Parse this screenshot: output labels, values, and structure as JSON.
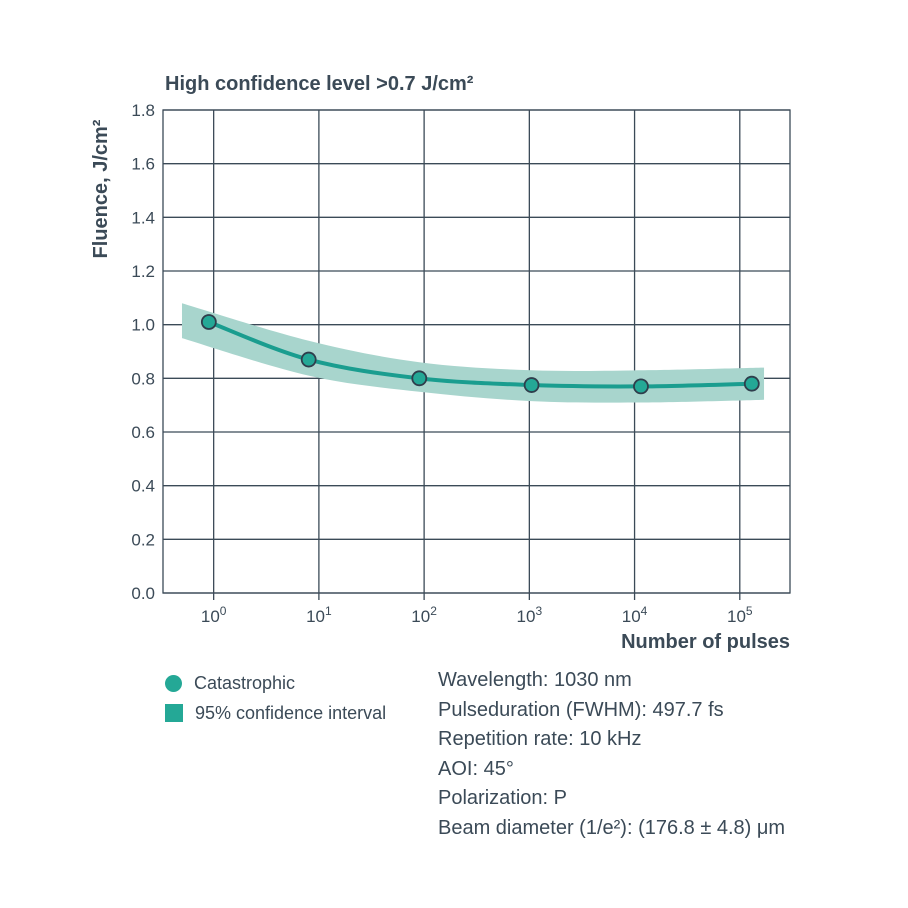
{
  "chart_data": {
    "type": "line",
    "title": "High confidence level >0.7 J/cm²",
    "xlabel": "Number of pulses",
    "ylabel": "Fluence, J/cm²",
    "x_scale": "log",
    "x_ticks": [
      1,
      10,
      100,
      1000,
      10000,
      100000
    ],
    "x_tick_labels": [
      {
        "base": "10",
        "exp": "0"
      },
      {
        "base": "10",
        "exp": "1"
      },
      {
        "base": "10",
        "exp": "2"
      },
      {
        "base": "10",
        "exp": "3"
      },
      {
        "base": "10",
        "exp": "4"
      },
      {
        "base": "10",
        "exp": "5"
      }
    ],
    "xlim": [
      0.33,
      300000
    ],
    "ylim": [
      0,
      1.8
    ],
    "y_ticks": [
      0.0,
      0.2,
      0.4,
      0.6,
      0.8,
      1.0,
      1.2,
      1.4,
      1.6,
      1.8
    ],
    "y_tick_labels": [
      "0.0",
      "0.2",
      "0.4",
      "0.6",
      "0.8",
      "1.0",
      "1.2",
      "1.4",
      "1.6",
      "1.8"
    ],
    "grid": true,
    "series": [
      {
        "name": "Catastrophic",
        "x": [
          0.9,
          8,
          90,
          1050,
          11500,
          130000
        ],
        "y": [
          1.01,
          0.87,
          0.8,
          0.775,
          0.77,
          0.78
        ]
      }
    ],
    "confidence_band": {
      "name": "95% confidence interval",
      "x": [
        0.5,
        8,
        90,
        1050,
        11500,
        170000
      ],
      "upper": [
        1.08,
        0.94,
        0.86,
        0.83,
        0.83,
        0.84
      ],
      "lower": [
        0.95,
        0.81,
        0.75,
        0.715,
        0.71,
        0.72
      ]
    },
    "colors": {
      "line": "#1a9d8f",
      "band": "#a8d5cd",
      "marker_fill": "#24a896",
      "marker_edge": "#2f3e4c",
      "grid": "#3b4a57",
      "text": "#3b4a57"
    }
  },
  "legend": {
    "items": [
      {
        "label": "Catastrophic",
        "marker": "circle",
        "color": "#24a896"
      },
      {
        "label": "95% confidence interval",
        "marker": "square",
        "color": "#24a896"
      }
    ]
  },
  "specs": {
    "wavelength": "Wavelength: 1030 nm",
    "pulse_duration": "Pulseduration (FWHM): 497.7 fs",
    "repetition_rate": "Repetition rate: 10 kHz",
    "aoi": "AOI: 45°",
    "polarization": "Polarization: P",
    "beam_diameter": "Beam diameter (1/e²): (176.8 ± 4.8) μm"
  }
}
